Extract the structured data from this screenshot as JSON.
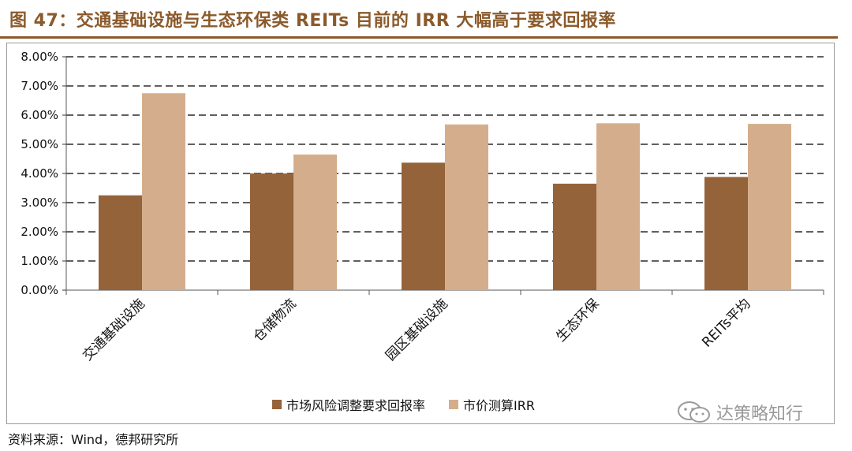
{
  "figure": {
    "title": "图 47：交通基础设施与生态环保类 REITs 目前的 IRR 大幅高于要求回报率",
    "source": "资料来源：Wind，德邦研究所",
    "watermark": "达策略知行"
  },
  "colors": {
    "series1": "#94633A",
    "series2": "#D4AE8C",
    "title": "#8B5A2B",
    "grid": "#000000"
  },
  "chart_data": {
    "type": "bar",
    "categories": [
      "交通基础设施",
      "仓储物流",
      "园区基础设施",
      "生态环保",
      "REITs平均"
    ],
    "series": [
      {
        "name": "市场风险调整要求回报率",
        "values": [
          3.25,
          4.0,
          4.37,
          3.65,
          3.88
        ]
      },
      {
        "name": "市价测算IRR",
        "values": [
          6.75,
          4.65,
          5.68,
          5.72,
          5.7
        ]
      }
    ],
    "ylim": [
      0,
      8
    ],
    "yticks": [
      "0.00%",
      "1.00%",
      "2.00%",
      "3.00%",
      "4.00%",
      "5.00%",
      "6.00%",
      "7.00%",
      "8.00%"
    ],
    "unit": "%",
    "grid": "dashed horizontal",
    "legend": "bottom-center"
  }
}
